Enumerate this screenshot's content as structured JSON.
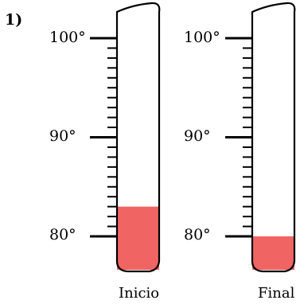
{
  "problem_number": "1)",
  "fill_color": "#f06464",
  "scale": {
    "min": 80,
    "max": 100,
    "label_step": 10,
    "minor_step": 1
  },
  "thermometers": [
    {
      "caption": "Inicio",
      "reading": 83,
      "tick_labels": [
        "100°",
        "90°",
        "80°"
      ]
    },
    {
      "caption": "Final",
      "reading": 80,
      "tick_labels": [
        "100°",
        "90°",
        "80°"
      ]
    }
  ]
}
